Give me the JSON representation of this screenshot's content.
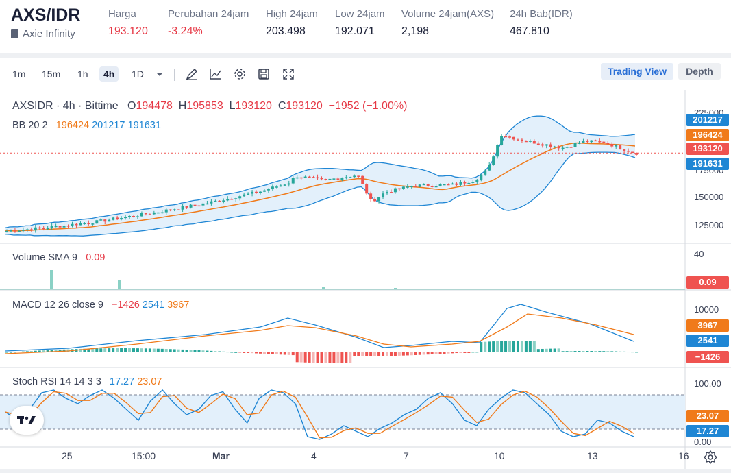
{
  "header": {
    "pair": "AXS/IDR",
    "coin_name": "Axie Infinity",
    "stats": [
      {
        "label": "Harga",
        "value": "193.120",
        "color": "red"
      },
      {
        "label": "Perubahan 24jam",
        "value": "-3.24%",
        "color": "red"
      },
      {
        "label": "High 24jam",
        "value": "203.498"
      },
      {
        "label": "Low 24jam",
        "value": "192.071"
      },
      {
        "label": "Volume 24jam(AXS)",
        "value": "2,198"
      },
      {
        "label": "24h Bab(IDR)",
        "value": "467.810"
      }
    ]
  },
  "toolbar": {
    "timeframes": [
      "1m",
      "15m",
      "1h",
      "4h",
      "1D"
    ],
    "active_timeframe": "4h",
    "icons": [
      "chevron-down-icon",
      "draw-icon",
      "indicator-icon",
      "settings-icon",
      "save-icon",
      "fullscreen-icon"
    ],
    "trading_view_label": "Trading View",
    "depth_label": "Depth"
  },
  "chart_data": {
    "type": "candlestick",
    "symbol_line": "AXSIDR · 4h · Bittime",
    "ohlc": {
      "O": "194478",
      "H": "195853",
      "L": "193120",
      "C": "193120",
      "change": "−1952 (−1.00%)"
    },
    "bb": {
      "label": "BB 20 2",
      "mid": "196424",
      "upper": "201217",
      "lower": "191631"
    },
    "price_axis": {
      "ticks": [
        "225000",
        "175000",
        "150000",
        "125000"
      ],
      "ylim": [
        115000,
        235000
      ]
    },
    "price_tags": {
      "mid": "196424",
      "upper": "201217",
      "close": "193120",
      "lower": "191631"
    },
    "volume": {
      "label": "Volume SMA 9",
      "value": "0.09",
      "tick": "40",
      "tag": "0.09"
    },
    "macd": {
      "label": "MACD 12 26 close 9",
      "hist": "−1426",
      "macd": "2541",
      "signal": "3967",
      "tick": "10000",
      "tags": [
        "3967",
        "2541",
        "−1426"
      ]
    },
    "stoch_rsi": {
      "label": "Stoch RSI 14 14 3 3",
      "k": "17.27",
      "d": "23.07",
      "ticks": [
        "100.00",
        "0.00"
      ],
      "tags": [
        "23.07",
        "17.27"
      ]
    },
    "x_labels": [
      "25",
      "15:00",
      "Mar",
      "4",
      "7",
      "10",
      "13",
      "16"
    ],
    "colors": {
      "up": "#26a69a",
      "down": "#ef5350",
      "bb_mid": "#f07a1a",
      "bb_band": "#1f86d4",
      "macd": "#1f86d4",
      "signal": "#f07a1a"
    }
  }
}
